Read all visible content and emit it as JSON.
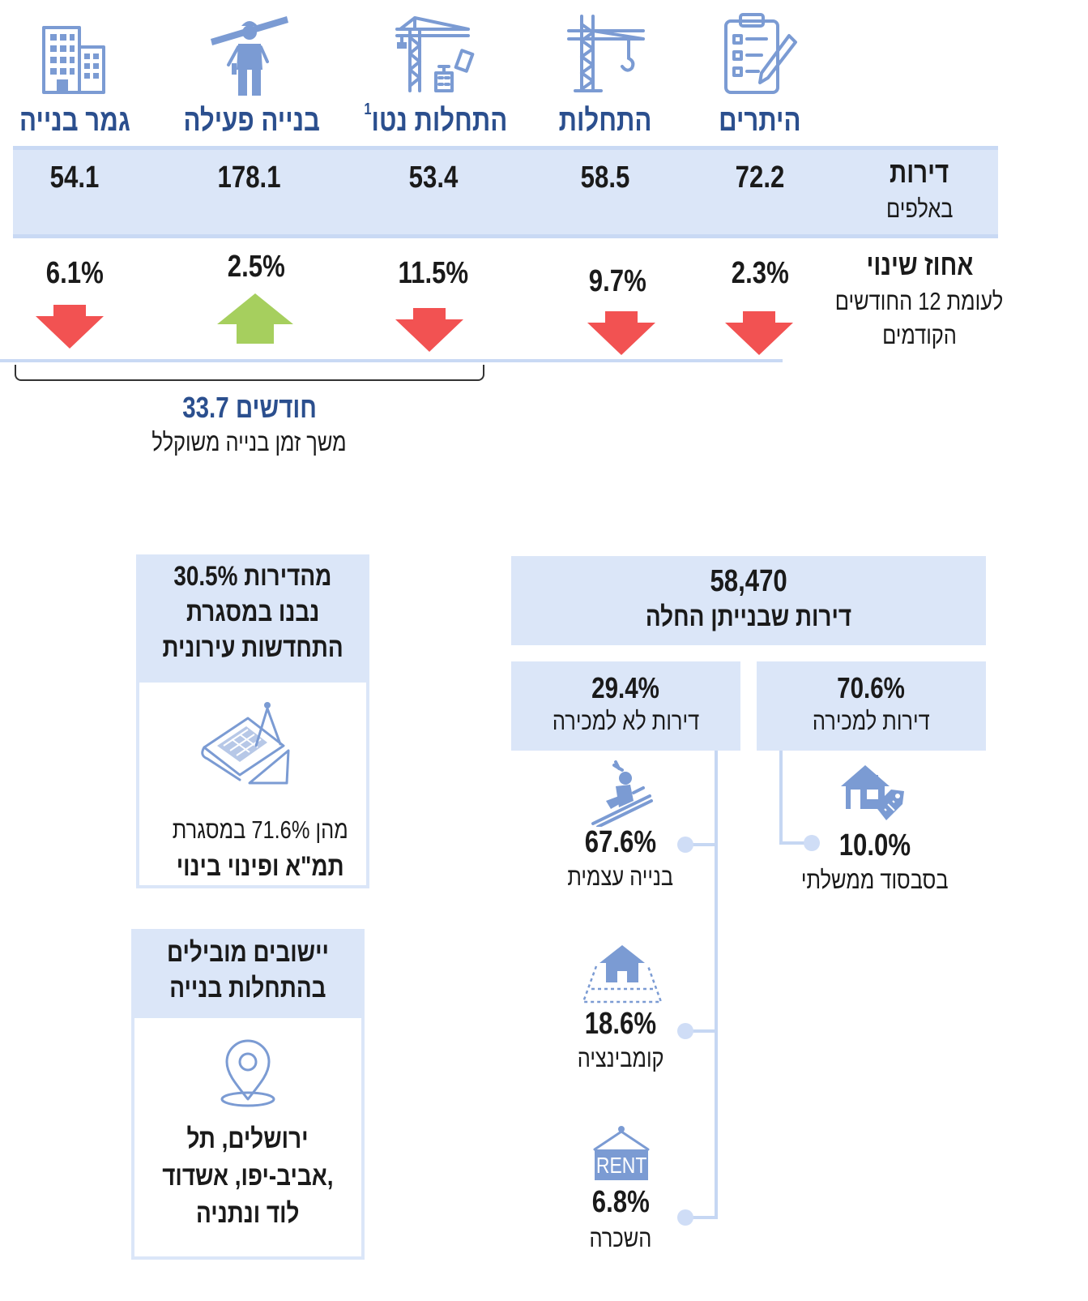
{
  "columns": [
    {
      "title": "היתרים",
      "value": "72.2",
      "change": "2.3%",
      "direction": "down"
    },
    {
      "title": "התחלות",
      "value": "58.5",
      "change": "9.7%",
      "direction": "down"
    },
    {
      "title": "התחלות נטו",
      "title_sup": "1",
      "value": "53.4",
      "change": "11.5%",
      "direction": "down"
    },
    {
      "title": "בנייה פעילה",
      "value": "178.1",
      "change": "2.5%",
      "direction": "up"
    },
    {
      "title": "גמר בנייה",
      "value": "54.1",
      "change": "6.1%",
      "direction": "down"
    }
  ],
  "row_labels": {
    "units_title": "דירות",
    "units_sub": "באלפים",
    "change_title": "אחוז שינוי",
    "change_sub_1": "לעומת 12 החודשים",
    "change_sub_2": "הקודמים"
  },
  "duration": {
    "value": "33.7 חודשים",
    "label": "משך זמן בנייה משוקלל"
  },
  "starts_box": {
    "total": "58,470",
    "title": "דירות שבנייתן החלה",
    "for_sale_pct": "70.6%",
    "for_sale_label": "דירות למכירה",
    "not_for_sale_pct": "29.4%",
    "not_for_sale_label": "דירות לא למכירה",
    "subsidized_pct": "10.0%",
    "subsidized_label": "בסבסוד ממשלתי",
    "self_build_pct": "67.6%",
    "self_build_label": "בנייה עצמית",
    "combination_pct": "18.6%",
    "combination_label": "קומבינציה",
    "rent_pct": "6.8%",
    "rent_label": "השכרה",
    "rent_sign": "RENT"
  },
  "renewal_box": {
    "line1": "30.5% מהדירות",
    "line2": "נבנו במסגרת",
    "line3": "התחדשות עירונית",
    "body1": "מהן 71.6% במסגרת",
    "body2": "תמ\"א ופינוי בינוי"
  },
  "cities_box": {
    "title1": "יישובים מובילים",
    "title2": "בהתחלות בנייה",
    "city1": "ירושלים, תל",
    "city2": "אביב-יפו, אשדוד,",
    "city3": "לוד ונתניה"
  },
  "colors": {
    "header_blue": "#2b4f8e",
    "icon_blue": "#7b9bd3",
    "band": "#dbe6f8",
    "arrow_down": "#f25252",
    "arrow_up": "#a6cf5e"
  },
  "icons": [
    "building-icon",
    "construction-worker-icon",
    "crane-with-building-icon",
    "crane-icon",
    "clipboard-pencil-icon",
    "blueprint-compass-icon",
    "location-pin-icon",
    "roofer-worker-icon",
    "house-tag-icon",
    "house-plot-icon",
    "rent-sign-icon"
  ]
}
